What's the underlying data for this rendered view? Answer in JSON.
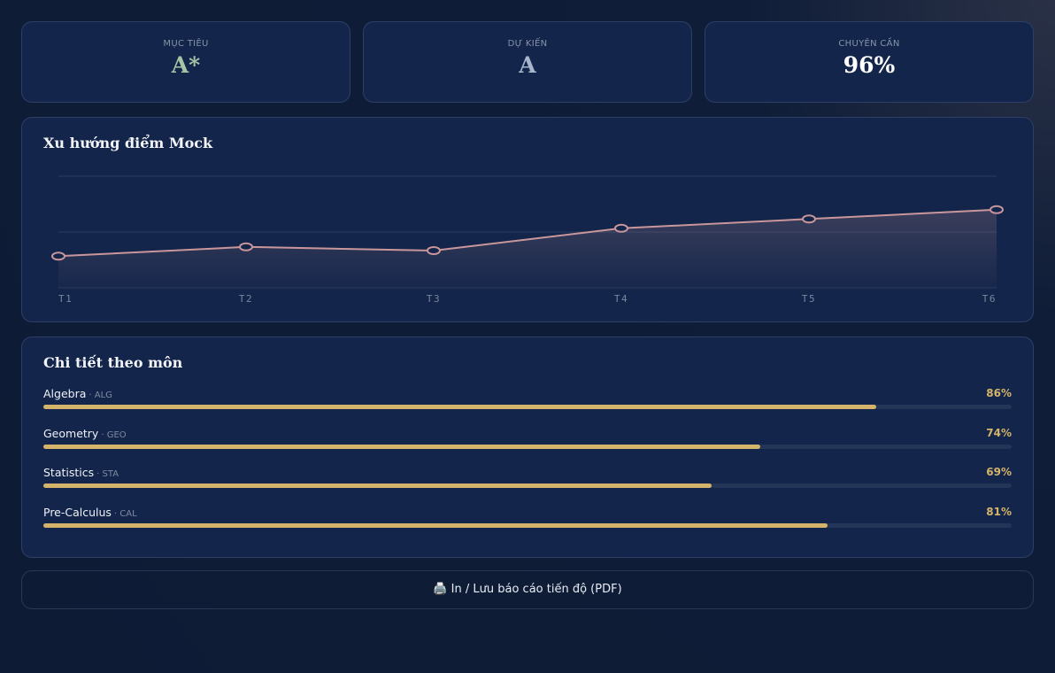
{
  "stats": [
    {
      "label": "MỤC TIÊU",
      "value": "A*",
      "color": "#a9c3a6"
    },
    {
      "label": "DỰ KIẾN",
      "value": "A",
      "color": "#a8b6cc"
    },
    {
      "label": "CHUYÊN CẦN",
      "value": "96%",
      "color": "#ffffff"
    }
  ],
  "chart_data": {
    "type": "line",
    "title": "Xu hướng điểm Mock",
    "categories": [
      "T1",
      "T2",
      "T3",
      "T4",
      "T5",
      "T6"
    ],
    "values": [
      57,
      62,
      60,
      72,
      77,
      82
    ],
    "color": "#c9979b",
    "ylim": [
      40,
      100
    ],
    "yticks": [
      40,
      70,
      100
    ],
    "grid": true
  },
  "subjects": {
    "title": "Chi tiết theo môn",
    "xlim": [
      0,
      100
    ],
    "color": "#d4b36a",
    "rows": [
      {
        "name": "Algebra",
        "code": "· ALG",
        "value": 86,
        "value_label": "86%"
      },
      {
        "name": "Geometry",
        "code": "· GEO",
        "value": 74,
        "value_label": "74%"
      },
      {
        "name": "Statistics",
        "code": "· STA",
        "value": 69,
        "value_label": "69%"
      },
      {
        "name": "Pre-Calculus",
        "code": "· CAL",
        "value": 81,
        "value_label": "81%"
      }
    ]
  },
  "button": {
    "label": "🖨️ In / Lưu báo cáo tiến độ (PDF)"
  }
}
